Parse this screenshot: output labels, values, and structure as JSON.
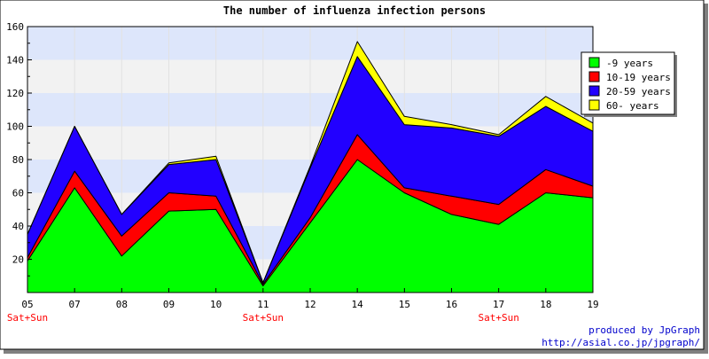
{
  "chart_data": {
    "type": "area",
    "stacked": true,
    "title": "The number of influenza infection persons",
    "categories": [
      "05",
      "07",
      "08",
      "09",
      "10",
      "11",
      "12",
      "14",
      "15",
      "16",
      "17",
      "18",
      "19"
    ],
    "weekend_labels": [
      "Sat+Sun",
      "",
      "",
      "",
      "",
      "Sat+Sun",
      "",
      "",
      "",
      "",
      "Sat+Sun",
      "",
      ""
    ],
    "ylim": [
      0,
      160
    ],
    "yticks": [
      20,
      40,
      60,
      80,
      100,
      120,
      140,
      160
    ],
    "grid": true,
    "legend_position": "top-right",
    "series": [
      {
        "name": "-9 years",
        "color": "#00ff00",
        "values": [
          19,
          63,
          22,
          49,
          50,
          4,
          42,
          80,
          60,
          47,
          41,
          60,
          57
        ]
      },
      {
        "name": "10-19 years",
        "color": "#ff0000",
        "values": [
          2,
          10,
          12,
          11,
          8,
          1,
          3,
          15,
          3,
          11,
          12,
          14,
          7
        ]
      },
      {
        "name": "20-59 years",
        "color": "#2200ff",
        "values": [
          14,
          27,
          13,
          17,
          22,
          1,
          30,
          47,
          38,
          41,
          41,
          38,
          33
        ]
      },
      {
        "name": "60- years",
        "color": "#ffff00",
        "values": [
          0,
          0,
          0,
          1,
          2,
          0,
          1,
          9,
          5,
          2,
          1,
          6,
          5
        ]
      }
    ]
  },
  "credit": {
    "line1": "produced by JpGraph",
    "line2": "http://asial.co.jp/jpgraph/"
  },
  "colors": {
    "band": "#dde6fb",
    "band_alt": "#f2f2f2",
    "weekend_label": "#ff0000",
    "credit": "#0000cc"
  }
}
